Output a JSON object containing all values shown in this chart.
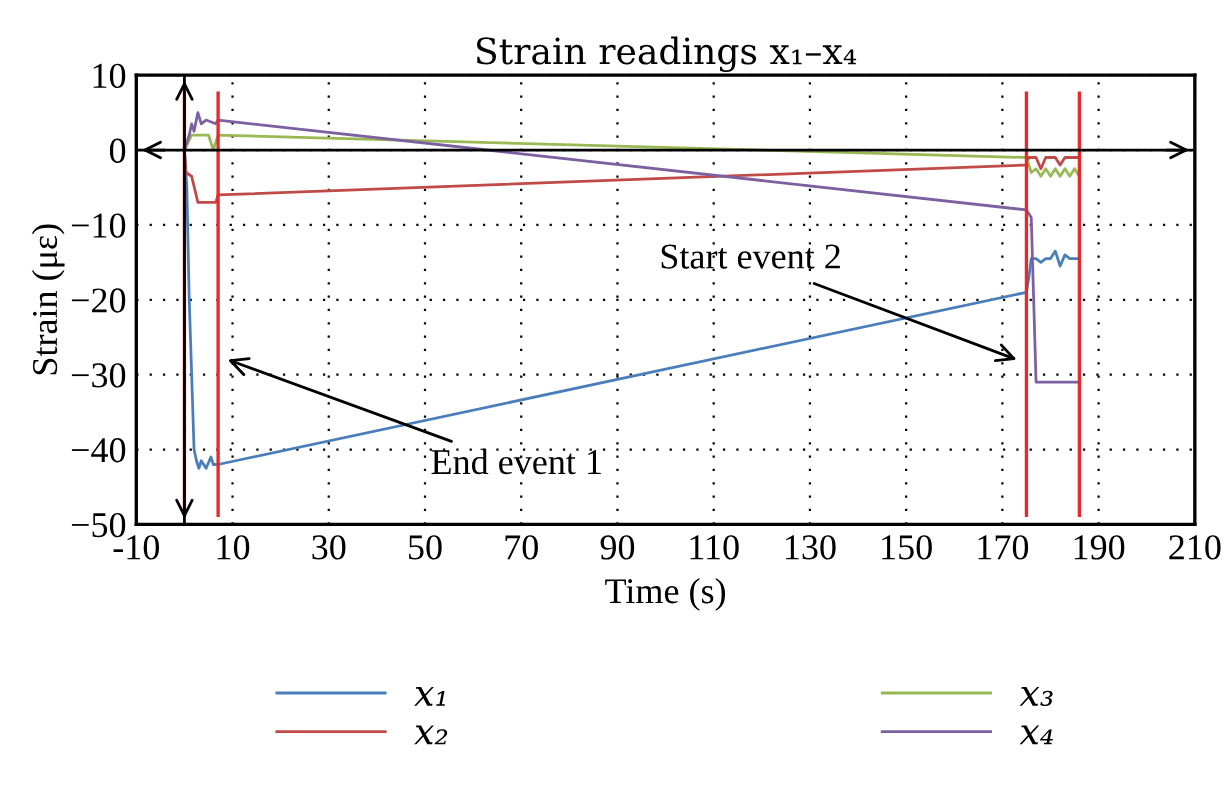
{
  "chart_data": {
    "type": "line",
    "title": "Strain readings x₁–x₄",
    "xlabel": "Time (s)",
    "ylabel": "Strain (με)",
    "xlim": [
      -10,
      210
    ],
    "xticks": [
      -10,
      10,
      30,
      50,
      70,
      90,
      110,
      130,
      150,
      170,
      190,
      210
    ],
    "ylim": [
      -50,
      10
    ],
    "yticks": [
      -50,
      -40,
      -30,
      -20,
      -10,
      0,
      10
    ],
    "grid": true,
    "legend": "bottom",
    "line_style": "solid",
    "marker": "none",
    "series": [
      {
        "name": "x₁",
        "color": "#4a7ebb",
        "x": [
          0,
          0.5,
          1,
          2,
          2.5,
          3,
          3.5,
          4.5,
          5.5,
          6,
          7,
          175,
          175.5,
          176,
          177,
          178,
          179,
          180,
          181,
          182,
          183,
          184,
          186
        ],
        "values": [
          0,
          -5,
          -20,
          -40,
          -41.5,
          -42.5,
          -41.5,
          -42.5,
          -41,
          -42,
          -42,
          -19,
          -17,
          -14.5,
          -14.5,
          -15,
          -14.5,
          -14.5,
          -13.5,
          -15.5,
          -14,
          -14.5,
          -14.5
        ]
      },
      {
        "name": "x₂",
        "color": "#be4b48",
        "x": [
          0,
          0.3,
          1.5,
          2.8,
          6.5,
          7,
          175,
          175.5,
          177,
          178,
          179,
          181,
          182,
          183,
          186
        ],
        "values": [
          0,
          -3,
          -3.5,
          -7,
          -7,
          -6,
          -2,
          -1,
          -1,
          -2.5,
          -1,
          -1,
          -2,
          -1,
          -1
        ]
      },
      {
        "name": "x₃",
        "color": "#98b954",
        "x": [
          0,
          1.5,
          3,
          5,
          6,
          7,
          175,
          176,
          177,
          178,
          179,
          180,
          181,
          182,
          183,
          184,
          185,
          186
        ],
        "values": [
          0,
          2,
          2,
          2,
          0,
          2,
          -1,
          -3,
          -2.5,
          -3.5,
          -2.5,
          -3.5,
          -2.5,
          -3.5,
          -2.5,
          -3.5,
          -2.5,
          -3.5
        ]
      },
      {
        "name": "x₄",
        "color": "#7d60a0",
        "x": [
          0,
          1,
          1.5,
          2,
          2.8,
          3.5,
          4.5,
          6.5,
          7,
          175,
          176,
          177,
          186
        ],
        "values": [
          0,
          2,
          3.5,
          2.5,
          5,
          3.5,
          4,
          3.5,
          4,
          -8,
          -9,
          -31,
          -31
        ]
      }
    ],
    "ref_lines": [
      {
        "axis": "x",
        "value": 0,
        "color": "#e8282b"
      },
      {
        "axis": "x",
        "value": 7,
        "color": "#e8282b"
      },
      {
        "axis": "x",
        "value": 175,
        "color": "#e8282b"
      },
      {
        "axis": "x",
        "value": 186,
        "color": "#e8282b"
      },
      {
        "axis": "y",
        "value": 0,
        "color": "#000000"
      },
      {
        "axis": "x",
        "value": 0,
        "color": "#000000"
      }
    ],
    "annotations": [
      {
        "text": "End event 1",
        "x": 9,
        "y": -28
      },
      {
        "text": "Start event 2",
        "x": 173,
        "y": -28
      }
    ]
  }
}
